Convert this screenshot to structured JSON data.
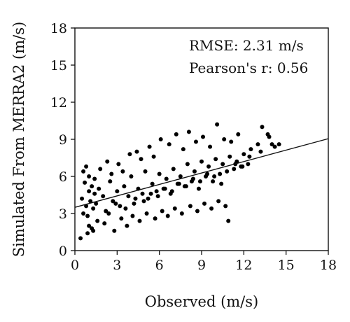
{
  "chart_data": {
    "type": "scatter",
    "title": "",
    "xlabel": "Observed (m/s)",
    "ylabel": "Simulated From MERRA2 (m/s)",
    "xlim": [
      0,
      18
    ],
    "ylim": [
      0,
      18
    ],
    "xticks": [
      0,
      3,
      6,
      9,
      12,
      15,
      18
    ],
    "yticks": [
      0,
      3,
      6,
      9,
      12,
      15,
      18
    ],
    "xtick_labels": [
      "0",
      "3",
      "6",
      "9",
      "12",
      "15",
      "18"
    ],
    "ytick_labels": [
      "0",
      "3",
      "6",
      "9",
      "12",
      "15",
      "18"
    ],
    "grid": false,
    "marker_color": "#000000",
    "annotations": [
      "RMSE: 2.31 m/s",
      "Pearson's r: 0.56"
    ],
    "regression_line": {
      "x": [
        0,
        18
      ],
      "y": [
        3.5,
        9.05
      ]
    },
    "series": [
      {
        "x": [
          0.5,
          0.6,
          0.7,
          0.8,
          0.9,
          1.0,
          1.1,
          1.2,
          1.3,
          1.4,
          0.8,
          1.0,
          1.5,
          1.7,
          2.0,
          2.2,
          2.5,
          2.7,
          3.0,
          3.2,
          3.5,
          3.8,
          4.0,
          4.2,
          4.5,
          4.8,
          5.0,
          5.2,
          5.5,
          5.8,
          6.0,
          6.3,
          6.5,
          6.8,
          7.0,
          7.3,
          7.5,
          7.8,
          8.0,
          8.3,
          8.5,
          8.8,
          9.0,
          9.3,
          9.5,
          9.8,
          10.0,
          10.3,
          10.5,
          10.8,
          11.0,
          11.3,
          11.5,
          11.8,
          12.0,
          12.3,
          12.5,
          13.0,
          13.3,
          13.8,
          14.2,
          14.5,
          0.6,
          1.0,
          1.4,
          1.8,
          2.3,
          2.6,
          3.1,
          3.4,
          3.9,
          4.4,
          4.7,
          5.3,
          5.6,
          6.1,
          6.7,
          7.2,
          7.7,
          8.1,
          8.6,
          9.1,
          9.6,
          10.1,
          10.6,
          11.1,
          11.6,
          1.2,
          1.6,
          2.1,
          2.8,
          3.3,
          3.7,
          4.1,
          4.6,
          5.1,
          5.7,
          6.2,
          6.6,
          7.1,
          7.6,
          8.2,
          8.7,
          9.2,
          9.7,
          10.2,
          10.7,
          0.4,
          0.9,
          1.3,
          2.4,
          2.9,
          3.6,
          4.3,
          4.9,
          5.4,
          5.9,
          6.4,
          6.9,
          7.4,
          7.9,
          8.4,
          8.9,
          9.4,
          9.9,
          10.4,
          10.9,
          11.4,
          11.9,
          12.4,
          13.2,
          13.7,
          14.0
        ],
        "y": [
          4.2,
          3.0,
          5.5,
          3.6,
          2.8,
          4.8,
          4.0,
          5.2,
          3.4,
          4.6,
          6.8,
          2.0,
          3.8,
          5.0,
          4.4,
          3.2,
          5.6,
          4.0,
          4.8,
          3.6,
          5.2,
          4.4,
          6.0,
          3.8,
          5.0,
          4.6,
          6.4,
          4.2,
          5.4,
          4.8,
          6.2,
          5.0,
          5.8,
          4.6,
          6.6,
          5.4,
          6.0,
          5.2,
          7.0,
          5.6,
          6.4,
          5.0,
          7.2,
          6.0,
          6.8,
          5.6,
          7.4,
          6.2,
          7.0,
          6.4,
          7.6,
          6.6,
          7.2,
          6.8,
          7.8,
          7.0,
          8.2,
          8.6,
          10.0,
          9.2,
          8.4,
          8.6,
          6.4,
          6.0,
          5.8,
          6.6,
          7.2,
          6.2,
          7.0,
          6.4,
          7.8,
          8.0,
          7.4,
          8.4,
          7.6,
          9.0,
          8.6,
          9.4,
          8.2,
          9.6,
          8.8,
          9.2,
          8.4,
          10.2,
          9.0,
          8.8,
          9.4,
          1.8,
          2.4,
          2.2,
          1.6,
          2.6,
          2.0,
          2.8,
          2.4,
          3.0,
          2.6,
          3.2,
          2.8,
          3.4,
          3.0,
          3.6,
          3.2,
          3.8,
          3.4,
          4.0,
          3.6,
          1.0,
          1.4,
          1.6,
          3.0,
          3.8,
          3.4,
          4.2,
          4.0,
          4.6,
          4.4,
          5.0,
          4.8,
          5.4,
          5.2,
          5.8,
          5.6,
          6.2,
          6.0,
          5.4,
          2.4,
          7.0,
          6.8,
          7.6,
          8.0,
          9.4,
          8.6
        ]
      }
    ]
  }
}
